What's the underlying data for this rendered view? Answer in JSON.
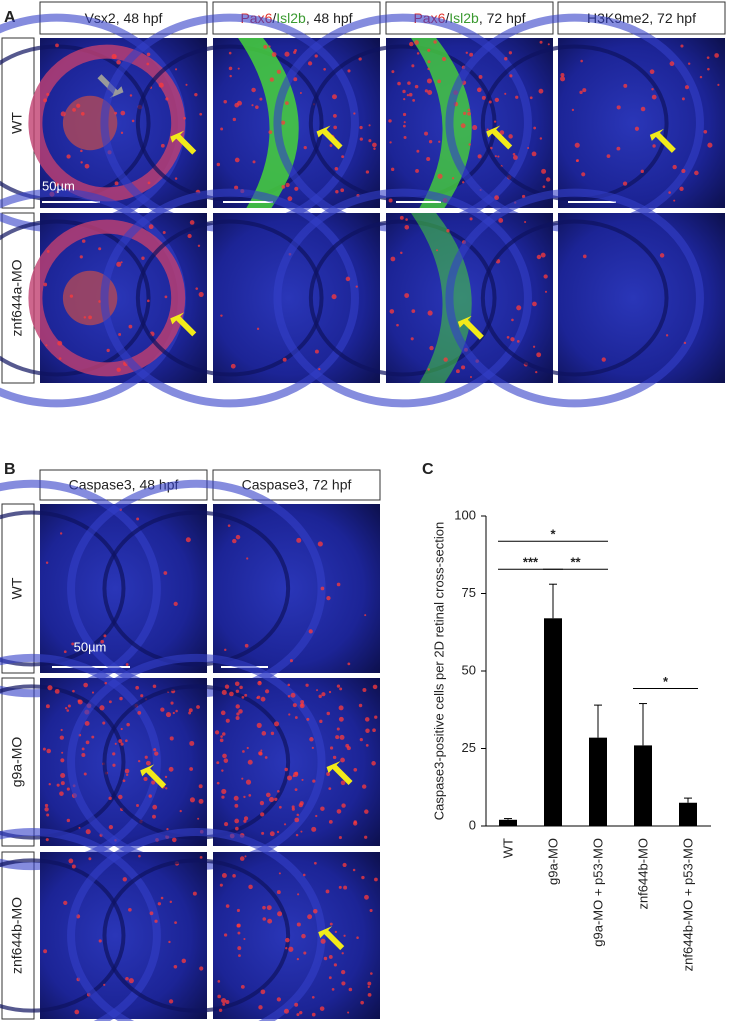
{
  "panel_a": {
    "label": "A",
    "columns": [
      [
        {
          "text": "Vsx2, 48 hpf",
          "color": "#222222"
        }
      ],
      [
        {
          "text": "Pax6",
          "color": "#e0302a"
        },
        {
          "text": "/",
          "color": "#222222"
        },
        {
          "text": "Isl2b",
          "color": "#3a9a30"
        },
        {
          "text": ", 48 hpf",
          "color": "#222222"
        }
      ],
      [
        {
          "text": "Pax6",
          "color": "#e0302a"
        },
        {
          "text": "/",
          "color": "#222222"
        },
        {
          "text": "Isl2b",
          "color": "#3a9a30"
        },
        {
          "text": ", 72 hpf",
          "color": "#222222"
        }
      ],
      [
        {
          "text": "H3K9me2, 72 hpf",
          "color": "#222222"
        }
      ]
    ],
    "rows": [
      "WT",
      "znf644a-MO"
    ],
    "scale_bar": "50µm"
  },
  "panel_b": {
    "label": "B",
    "columns": [
      "Caspase3, 48 hpf",
      "Caspase3, 72 hpf"
    ],
    "rows": [
      "WT",
      "g9a-MO",
      "znf644b-MO"
    ],
    "scale_bar": "50µm"
  },
  "panel_c_label": "C",
  "chart_data": {
    "type": "bar",
    "y_label": "Caspase3-positive cells per 2D retinal cross-section",
    "categories": [
      "WT",
      "g9a-MO",
      "g9a-MO + p53-MO",
      "znf644b-MO",
      "znf644b-MO + p53-MO"
    ],
    "values": [
      2,
      67,
      28.5,
      26,
      7.5
    ],
    "errors": [
      0.4,
      11,
      10.5,
      13.5,
      1.5
    ],
    "color": "#000000",
    "ylim": [
      0,
      100
    ],
    "yticks": [
      0,
      25,
      50,
      75,
      100
    ],
    "significance": [
      {
        "from": 0,
        "to": 1,
        "label": "***"
      },
      {
        "from": 1,
        "to": 2,
        "label": "**"
      },
      {
        "from": 0,
        "to": 2,
        "label": "*"
      },
      {
        "from": 3,
        "to": 4,
        "label": "*"
      }
    ]
  }
}
